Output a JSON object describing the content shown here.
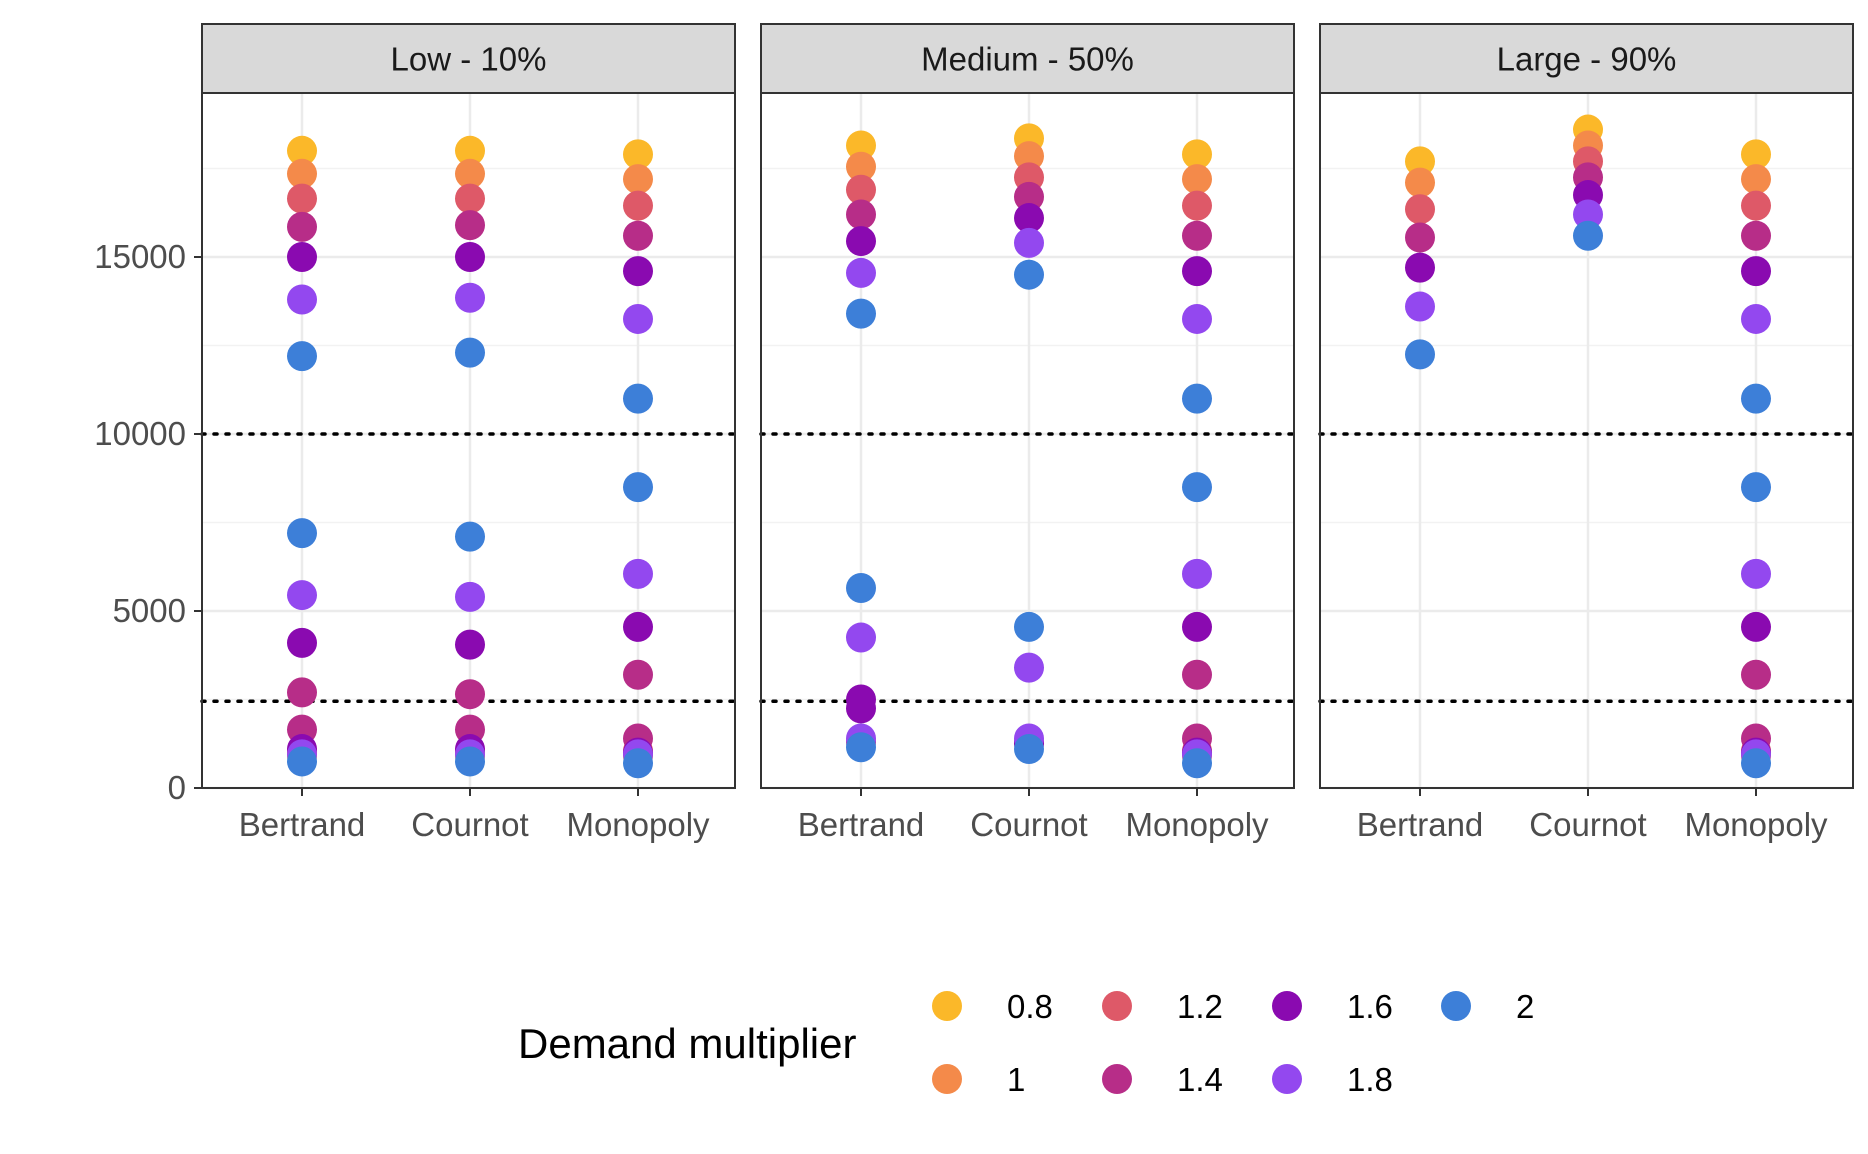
{
  "chart_data": {
    "type": "scatter",
    "facets": [
      "Low - 10%",
      "Medium - 50%",
      "Large - 90%"
    ],
    "categories": [
      "Bertrand",
      "Cournot",
      "Monopoly"
    ],
    "ylim": [
      0,
      19500
    ],
    "yticks": [
      0,
      5000,
      10000,
      15000
    ],
    "reference_lines": [
      10000,
      2450
    ],
    "grid": true,
    "legend": {
      "title": "Demand multiplier",
      "position": "bottom",
      "levels": [
        "0.8",
        "1",
        "1.2",
        "1.4",
        "1.6",
        "1.8",
        "2"
      ]
    },
    "colors": {
      "0.8": "#FBB829",
      "1": "#F48A4A",
      "1.2": "#DE5968",
      "1.4": "#B72D88",
      "1.6": "#8A0AB0",
      "1.8": "#9348EF",
      "2": "#3D7FD8"
    },
    "series": [
      {
        "facet": "Low - 10%",
        "points": {
          "Bertrand": {
            "0.8": [
              18000,
              1000
            ],
            "1": [
              17350,
              900
            ],
            "1.2": [
              16650,
              1050
            ],
            "1.4": [
              15850,
              1650,
              2700
            ],
            "1.6": [
              15000,
              1100,
              4100
            ],
            "1.8": [
              13800,
              950,
              5450
            ],
            "2": [
              12200,
              750,
              7200
            ]
          },
          "Cournot": {
            "0.8": [
              18000,
              1000
            ],
            "1": [
              17350,
              900
            ],
            "1.2": [
              16650,
              1050
            ],
            "1.4": [
              15900,
              1650,
              2650
            ],
            "1.6": [
              15000,
              1100,
              4050
            ],
            "1.8": [
              13850,
              950,
              5400
            ],
            "2": [
              12300,
              750,
              7100
            ]
          },
          "Monopoly": {
            "0.8": [
              17900,
              1000
            ],
            "1": [
              17200,
              900
            ],
            "1.2": [
              16450,
              1050
            ],
            "1.4": [
              15600,
              1400,
              3200
            ],
            "1.6": [
              14600,
              1000,
              4550
            ],
            "1.8": [
              13250,
              950,
              6050
            ],
            "2": [
              11000,
              700,
              8500
            ]
          }
        }
      },
      {
        "facet": "Medium - 50%",
        "points": {
          "Bertrand": {
            "0.8": [
              18150
            ],
            "1": [
              17550
            ],
            "1.2": [
              16900
            ],
            "1.4": [
              16200,
              1300
            ],
            "1.6": [
              15450,
              2500,
              2250
            ],
            "1.8": [
              14550,
              1400,
              4250
            ],
            "2": [
              13400,
              1150,
              5650
            ]
          },
          "Cournot": {
            "0.8": [
              18350
            ],
            "1": [
              17850
            ],
            "1.2": [
              17250
            ],
            "1.4": [
              16700,
              1300
            ],
            "1.6": [
              16100,
              1250
            ],
            "1.8": [
              15400,
              1400,
              3400
            ],
            "2": [
              14500,
              1100,
              4550
            ]
          },
          "Monopoly": {
            "0.8": [
              17900,
              1000
            ],
            "1": [
              17200,
              900
            ],
            "1.2": [
              16450,
              1050
            ],
            "1.4": [
              15600,
              1400,
              3200
            ],
            "1.6": [
              14600,
              1000,
              4550
            ],
            "1.8": [
              13250,
              950,
              6050
            ],
            "2": [
              11000,
              700,
              8500
            ]
          }
        }
      },
      {
        "facet": "Large - 90%",
        "points": {
          "Bertrand": {
            "0.8": [
              17700
            ],
            "1": [
              17100
            ],
            "1.2": [
              16350
            ],
            "1.4": [
              15550
            ],
            "1.6": [
              14700
            ],
            "1.8": [
              13600
            ],
            "2": [
              12250
            ]
          },
          "Cournot": {
            "0.8": [
              18600
            ],
            "1": [
              18150
            ],
            "1.2": [
              17700
            ],
            "1.4": [
              17250
            ],
            "1.6": [
              16750
            ],
            "1.8": [
              16200
            ],
            "2": [
              15600
            ]
          },
          "Monopoly": {
            "0.8": [
              17900,
              1000
            ],
            "1": [
              17200,
              900
            ],
            "1.2": [
              16450,
              1050
            ],
            "1.4": [
              15600,
              1400,
              3200
            ],
            "1.6": [
              14600,
              1000,
              4550
            ],
            "1.8": [
              13250,
              950,
              6050
            ],
            "2": [
              11000,
              700,
              8500
            ]
          }
        }
      }
    ]
  }
}
